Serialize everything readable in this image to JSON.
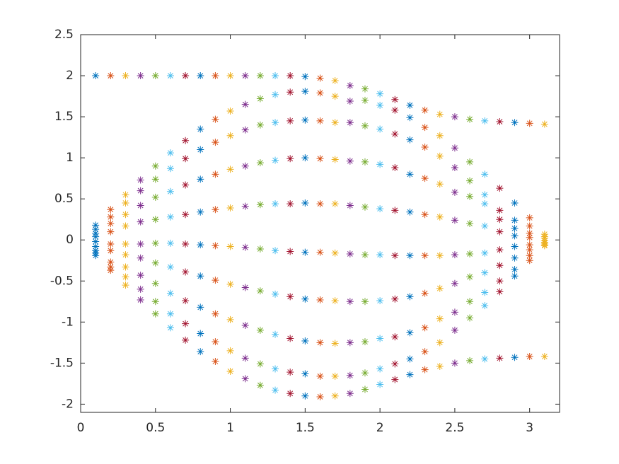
{
  "chart_data": {
    "type": "scatter",
    "marker": "asterisk",
    "xlim": [
      0,
      3.2
    ],
    "ylim": [
      -2.1,
      2.5
    ],
    "xticks": [
      0,
      0.5,
      1,
      1.5,
      2,
      2.5,
      3
    ],
    "yticks": [
      -2,
      -1.5,
      -1,
      -0.5,
      0,
      0.5,
      1,
      1.5,
      2,
      2.5
    ],
    "series": [
      {
        "color": "#0072BD",
        "x": 0.1,
        "values": [
          2.0,
          0.18,
          0.13,
          0.08,
          0.04,
          -0.02,
          -0.08,
          -0.13,
          -0.16,
          -0.19
        ]
      },
      {
        "color": "#D95319",
        "x": 0.2,
        "values": [
          2.0,
          0.37,
          0.28,
          0.2,
          0.1,
          -0.05,
          -0.13,
          -0.27,
          -0.33,
          -0.37
        ]
      },
      {
        "color": "#EDB120",
        "x": 0.3,
        "values": [
          2.0,
          0.55,
          0.45,
          0.31,
          0.17,
          -0.05,
          -0.18,
          -0.33,
          -0.45,
          -0.55
        ]
      },
      {
        "color": "#7E2F8E",
        "x": 0.4,
        "values": [
          2.0,
          0.73,
          0.6,
          0.42,
          0.22,
          -0.05,
          -0.22,
          -0.43,
          -0.6,
          -0.73
        ]
      },
      {
        "color": "#77AC30",
        "x": 0.5,
        "values": [
          2.0,
          0.9,
          0.74,
          0.52,
          0.25,
          -0.04,
          -0.28,
          -0.53,
          -0.75,
          -0.9
        ]
      },
      {
        "color": "#4DBEEE",
        "x": 0.6,
        "values": [
          2.0,
          1.06,
          0.87,
          0.59,
          0.28,
          -0.04,
          -0.33,
          -0.65,
          -0.9,
          -1.07
        ]
      },
      {
        "color": "#A2142F",
        "x": 0.7,
        "values": [
          2.0,
          1.21,
          0.99,
          0.67,
          0.31,
          -0.05,
          -0.39,
          -0.74,
          -1.02,
          -1.22
        ]
      },
      {
        "color": "#0072BD",
        "x": 0.8,
        "values": [
          2.0,
          1.35,
          1.1,
          0.74,
          0.34,
          -0.06,
          -0.44,
          -0.82,
          -1.14,
          -1.36
        ]
      },
      {
        "color": "#D95319",
        "x": 0.9,
        "values": [
          2.0,
          1.47,
          1.19,
          0.8,
          0.37,
          -0.07,
          -0.49,
          -0.9,
          -1.24,
          -1.48
        ]
      },
      {
        "color": "#EDB120",
        "x": 1.0,
        "values": [
          2.0,
          1.57,
          1.27,
          0.86,
          0.39,
          -0.08,
          -0.54,
          -0.97,
          -1.35,
          -1.6
        ]
      },
      {
        "color": "#7E2F8E",
        "x": 1.1,
        "values": [
          2.0,
          1.65,
          1.34,
          0.9,
          0.41,
          -0.09,
          -0.58,
          -1.04,
          -1.44,
          -1.69
        ]
      },
      {
        "color": "#77AC30",
        "x": 1.2,
        "values": [
          2.0,
          1.72,
          1.4,
          0.94,
          0.43,
          -0.11,
          -0.62,
          -1.1,
          -1.51,
          -1.77
        ]
      },
      {
        "color": "#4DBEEE",
        "x": 1.3,
        "values": [
          2.0,
          1.77,
          1.43,
          0.97,
          0.44,
          -0.13,
          -0.66,
          -1.15,
          -1.57,
          -1.83
        ]
      },
      {
        "color": "#A2142F",
        "x": 1.4,
        "values": [
          2.0,
          1.8,
          1.45,
          0.99,
          0.44,
          -0.14,
          -0.69,
          -1.2,
          -1.61,
          -1.87
        ]
      },
      {
        "color": "#0072BD",
        "x": 1.5,
        "values": [
          1.99,
          1.81,
          1.46,
          1.0,
          0.45,
          -0.15,
          -0.72,
          -1.23,
          -1.63,
          -1.9
        ]
      },
      {
        "color": "#D95319",
        "x": 1.6,
        "values": [
          1.97,
          1.79,
          1.45,
          0.99,
          0.44,
          -0.15,
          -0.73,
          -1.25,
          -1.66,
          -1.91
        ]
      },
      {
        "color": "#EDB120",
        "x": 1.7,
        "values": [
          1.94,
          1.75,
          1.43,
          0.98,
          0.44,
          -0.16,
          -0.74,
          -1.26,
          -1.66,
          -1.9
        ]
      },
      {
        "color": "#7E2F8E",
        "x": 1.8,
        "values": [
          1.88,
          1.69,
          1.43,
          0.96,
          0.42,
          -0.17,
          -0.75,
          -1.25,
          -1.65,
          -1.87
        ]
      },
      {
        "color": "#77AC30",
        "x": 1.9,
        "values": [
          1.84,
          1.7,
          1.39,
          0.95,
          0.4,
          -0.18,
          -0.75,
          -1.24,
          -1.62,
          -1.82
        ]
      },
      {
        "color": "#4DBEEE",
        "x": 2.0,
        "values": [
          1.78,
          1.64,
          1.35,
          0.92,
          0.38,
          -0.18,
          -0.74,
          -1.2,
          -1.57,
          -1.76
        ]
      },
      {
        "color": "#A2142F",
        "x": 2.1,
        "values": [
          1.71,
          1.58,
          1.29,
          0.88,
          0.36,
          -0.19,
          -0.72,
          -1.18,
          -1.51,
          -1.7
        ]
      },
      {
        "color": "#0072BD",
        "x": 2.2,
        "values": [
          1.64,
          1.49,
          1.22,
          0.8,
          0.34,
          -0.19,
          -0.69,
          -1.13,
          -1.45,
          -1.64
        ]
      },
      {
        "color": "#D95319",
        "x": 2.3,
        "values": [
          1.58,
          1.37,
          1.13,
          0.75,
          0.31,
          -0.19,
          -0.65,
          -1.07,
          -1.36,
          -1.58
        ]
      },
      {
        "color": "#EDB120",
        "x": 2.4,
        "values": [
          1.53,
          1.27,
          1.02,
          0.68,
          0.28,
          -0.19,
          -0.59,
          -0.96,
          -1.25,
          -1.54
        ]
      },
      {
        "color": "#7E2F8E",
        "x": 2.5,
        "values": [
          1.5,
          1.12,
          0.88,
          0.58,
          0.24,
          -0.18,
          -0.53,
          -0.88,
          -1.1,
          -1.5
        ]
      },
      {
        "color": "#77AC30",
        "x": 2.6,
        "values": [
          1.47,
          0.95,
          0.72,
          0.53,
          0.2,
          -0.17,
          -0.45,
          -0.75,
          -0.95,
          -1.47
        ]
      },
      {
        "color": "#4DBEEE",
        "x": 2.7,
        "values": [
          1.45,
          0.8,
          0.55,
          0.44,
          0.17,
          -0.16,
          -0.4,
          -0.64,
          -0.8,
          -1.45
        ]
      },
      {
        "color": "#A2142F",
        "x": 2.8,
        "values": [
          1.44,
          0.63,
          0.36,
          0.25,
          0.1,
          -0.12,
          -0.31,
          -0.5,
          -0.63,
          -1.44
        ]
      },
      {
        "color": "#0072BD",
        "x": 2.9,
        "values": [
          1.43,
          0.45,
          0.24,
          0.14,
          0.05,
          -0.08,
          -0.22,
          -0.36,
          -0.44,
          -1.43
        ]
      },
      {
        "color": "#D95319",
        "x": 3.0,
        "values": [
          1.42,
          0.27,
          0.17,
          0.08,
          0.03,
          -0.06,
          -0.12,
          -0.19,
          -0.25,
          -1.42
        ]
      },
      {
        "color": "#EDB120",
        "x": 3.1,
        "values": [
          1.41,
          0.07,
          0.04,
          0.02,
          -0.01,
          -0.04,
          -0.03,
          -0.06,
          -0.07,
          -1.42
        ]
      }
    ]
  }
}
